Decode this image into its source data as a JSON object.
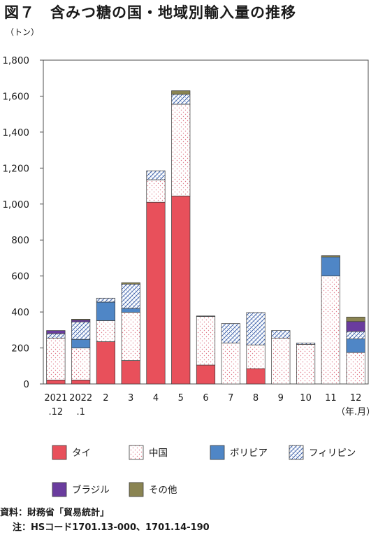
{
  "chart_data": {
    "type": "bar",
    "stacked": true,
    "title": "図７　含みつ糖の国・地域別輸入量の推移",
    "ylabel": "（トン）",
    "xlabel": "",
    "x_unit_label": "（年.月）",
    "ylim": [
      0,
      1800
    ],
    "yticks": [
      "0",
      "200",
      "400",
      "600",
      "800",
      "1,000",
      "1,200",
      "1,400",
      "1,600",
      "1,800"
    ],
    "grid": false,
    "legend_position": "bottom",
    "categories": [
      [
        "2021",
        ".12"
      ],
      [
        "2022",
        ".1"
      ],
      [
        "2"
      ],
      [
        "3"
      ],
      [
        "4"
      ],
      [
        "5"
      ],
      [
        "6"
      ],
      [
        "7"
      ],
      [
        "8"
      ],
      [
        "9"
      ],
      [
        "10"
      ],
      [
        "11"
      ],
      [
        "12"
      ]
    ],
    "series": [
      {
        "name": "タイ",
        "color": "#e8505b",
        "pattern": "solid",
        "values": [
          22,
          22,
          235,
          130,
          1010,
          1045,
          105,
          0,
          85,
          0,
          0,
          0,
          0
        ]
      },
      {
        "name": "中国",
        "color": "#ffffff",
        "pattern": "dots",
        "values": [
          233,
          178,
          117,
          268,
          125,
          510,
          270,
          228,
          132,
          255,
          220,
          600,
          175
        ]
      },
      {
        "name": "ボリビア",
        "color": "#4f86c6",
        "pattern": "solid",
        "values": [
          0,
          48,
          103,
          22,
          0,
          0,
          0,
          0,
          0,
          0,
          0,
          105,
          75
        ]
      },
      {
        "name": "フィリピン",
        "color": "#ffffff",
        "pattern": "hatch",
        "values": [
          25,
          97,
          22,
          135,
          50,
          55,
          3,
          108,
          180,
          42,
          7,
          0,
          42
        ]
      },
      {
        "name": "ブラジル",
        "color": "#6a3c9e",
        "pattern": "solid",
        "values": [
          17,
          10,
          0,
          0,
          0,
          0,
          0,
          0,
          0,
          0,
          0,
          0,
          55
        ]
      },
      {
        "name": "その他",
        "color": "#8a8452",
        "pattern": "solid",
        "values": [
          0,
          5,
          0,
          8,
          0,
          20,
          0,
          0,
          0,
          0,
          0,
          8,
          25
        ]
      }
    ]
  },
  "footer": {
    "source": "資料：財務省「貿易統計」",
    "note": "注：HSコード1701.13-000、1701.14-190"
  }
}
